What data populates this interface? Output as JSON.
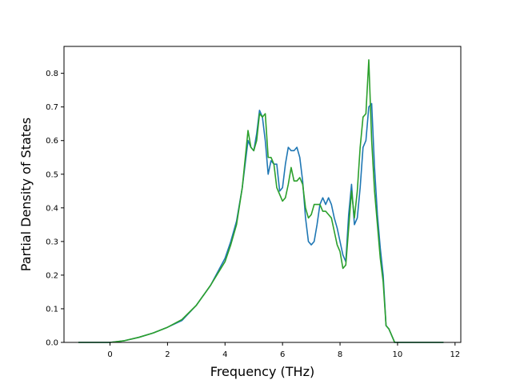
{
  "chart_data": {
    "type": "line",
    "title": "",
    "xlabel": "Frequency (THz)",
    "ylabel": "Partial Density of States",
    "xlim": [
      -1.6,
      12.2
    ],
    "ylim": [
      0.0,
      0.88
    ],
    "xticks": [
      0,
      2,
      4,
      6,
      8,
      10,
      12
    ],
    "yticks": [
      0.0,
      0.1,
      0.2,
      0.3,
      0.4,
      0.5,
      0.6,
      0.7,
      0.8
    ],
    "xtick_labels": [
      "0",
      "2",
      "4",
      "6",
      "8",
      "10",
      "12"
    ],
    "ytick_labels": [
      "0.0",
      "0.1",
      "0.2",
      "0.3",
      "0.4",
      "0.5",
      "0.6",
      "0.7",
      "0.8"
    ],
    "grid": false,
    "legend": "none",
    "series": [
      {
        "color": "#1f77b4",
        "x": [
          -1.1,
          -0.5,
          0.0,
          0.5,
          1.0,
          1.5,
          2.0,
          2.5,
          3.0,
          3.5,
          4.0,
          4.2,
          4.4,
          4.6,
          4.8,
          4.9,
          5.0,
          5.1,
          5.2,
          5.3,
          5.4,
          5.5,
          5.6,
          5.7,
          5.8,
          5.9,
          6.0,
          6.1,
          6.2,
          6.3,
          6.4,
          6.5,
          6.6,
          6.7,
          6.8,
          6.9,
          7.0,
          7.1,
          7.2,
          7.3,
          7.4,
          7.5,
          7.6,
          7.7,
          7.8,
          7.9,
          8.0,
          8.1,
          8.2,
          8.3,
          8.4,
          8.5,
          8.6,
          8.7,
          8.8,
          8.9,
          9.0,
          9.1,
          9.2,
          9.3,
          9.4,
          9.5,
          9.6,
          9.7,
          9.8,
          9.9,
          10.0,
          10.1,
          10.2,
          10.3,
          10.4,
          10.5,
          10.6,
          11.0,
          11.6
        ],
        "y": [
          0.0,
          0.0,
          0.0,
          0.005,
          0.015,
          0.028,
          0.045,
          0.065,
          0.11,
          0.17,
          0.25,
          0.3,
          0.36,
          0.46,
          0.6,
          0.58,
          0.57,
          0.62,
          0.69,
          0.67,
          0.6,
          0.5,
          0.54,
          0.53,
          0.53,
          0.45,
          0.46,
          0.53,
          0.58,
          0.57,
          0.57,
          0.58,
          0.55,
          0.48,
          0.37,
          0.3,
          0.29,
          0.3,
          0.35,
          0.41,
          0.43,
          0.41,
          0.43,
          0.41,
          0.37,
          0.34,
          0.3,
          0.26,
          0.24,
          0.38,
          0.47,
          0.35,
          0.37,
          0.46,
          0.58,
          0.6,
          0.7,
          0.71,
          0.52,
          0.38,
          0.28,
          0.2,
          0.05,
          0.04,
          0.02,
          0.0,
          0.0,
          0.0,
          0.0,
          0.0,
          0.0,
          0.0,
          0.0,
          0.0,
          0.0
        ]
      },
      {
        "color": "#2ca02c",
        "x": [
          -1.1,
          -0.5,
          0.0,
          0.5,
          1.0,
          1.5,
          2.0,
          2.5,
          3.0,
          3.5,
          4.0,
          4.2,
          4.4,
          4.6,
          4.8,
          4.9,
          5.0,
          5.1,
          5.2,
          5.3,
          5.4,
          5.5,
          5.6,
          5.7,
          5.8,
          5.9,
          6.0,
          6.1,
          6.2,
          6.3,
          6.4,
          6.5,
          6.6,
          6.7,
          6.8,
          6.9,
          7.0,
          7.1,
          7.2,
          7.3,
          7.4,
          7.5,
          7.6,
          7.7,
          7.8,
          7.9,
          8.0,
          8.1,
          8.2,
          8.3,
          8.4,
          8.5,
          8.6,
          8.7,
          8.8,
          8.9,
          9.0,
          9.1,
          9.2,
          9.3,
          9.4,
          9.5,
          9.6,
          9.7,
          9.8,
          9.9,
          10.0,
          10.1,
          10.2,
          10.3,
          10.4,
          10.5,
          10.6,
          11.0,
          11.6
        ],
        "y": [
          0.0,
          0.0,
          0.0,
          0.005,
          0.015,
          0.028,
          0.045,
          0.068,
          0.11,
          0.17,
          0.24,
          0.29,
          0.35,
          0.46,
          0.63,
          0.58,
          0.57,
          0.6,
          0.68,
          0.67,
          0.68,
          0.55,
          0.55,
          0.53,
          0.46,
          0.44,
          0.42,
          0.43,
          0.47,
          0.52,
          0.48,
          0.48,
          0.49,
          0.47,
          0.4,
          0.37,
          0.38,
          0.41,
          0.41,
          0.41,
          0.39,
          0.39,
          0.38,
          0.37,
          0.33,
          0.29,
          0.27,
          0.22,
          0.23,
          0.34,
          0.45,
          0.37,
          0.45,
          0.58,
          0.67,
          0.68,
          0.84,
          0.6,
          0.45,
          0.35,
          0.25,
          0.18,
          0.05,
          0.04,
          0.02,
          0.0,
          0.0,
          0.0,
          0.0,
          0.0,
          0.0,
          0.0,
          0.0,
          0.0,
          0.0
        ]
      }
    ]
  }
}
